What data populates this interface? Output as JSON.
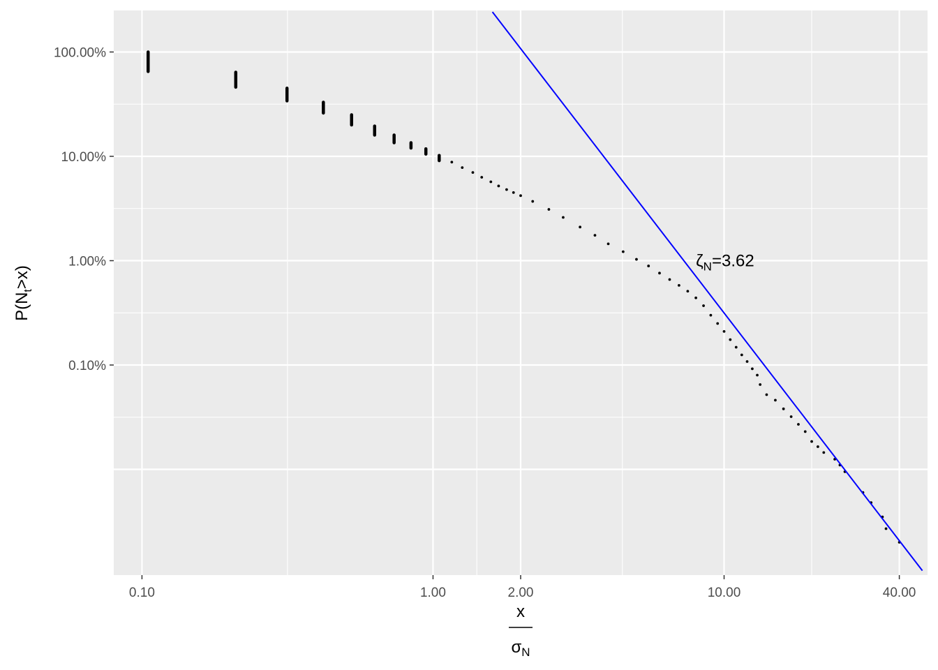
{
  "chart_data": {
    "type": "scatter",
    "x_scale": "log10",
    "y_scale": "log10",
    "xlim": [
      0.08,
      50
    ],
    "ylim": [
      9.7e-06,
      2.5
    ],
    "grid": true,
    "legend": "none",
    "colors": {
      "panel": "#ebebeb",
      "grid": "#ffffff",
      "points": "#000000",
      "fit_line": "#0000ff"
    },
    "xlabel": {
      "numerator": "x",
      "denominator_base": "σ",
      "denominator_sub": "N"
    },
    "ylabel": {
      "base": "P(N",
      "sub": "t",
      "rest": ">x)"
    },
    "x_major_ticks": [
      0.1,
      1,
      2,
      10,
      40
    ],
    "x_tick_labels": [
      "0.10",
      "1.00",
      "2.00",
      "10.00",
      "40.00"
    ],
    "x_minor_grid": [
      0.3162,
      1.4142,
      4.4721,
      20
    ],
    "y_major_ticks": [
      1,
      0.1,
      0.01,
      0.001
    ],
    "y_tick_labels": [
      "100.00%",
      "10.00%",
      "1.00%",
      "0.10%"
    ],
    "y_extra_grid": [
      0.0001
    ],
    "y_minor_grid": [
      0.3162,
      0.03162,
      0.003162,
      0.0003162
    ],
    "columns": [
      {
        "x": 0.105,
        "ymin": 0.65,
        "ymax": 1.0
      },
      {
        "x": 0.21,
        "ymin": 0.46,
        "ymax": 0.64
      },
      {
        "x": 0.315,
        "ymin": 0.34,
        "ymax": 0.45
      },
      {
        "x": 0.42,
        "ymin": 0.26,
        "ymax": 0.33
      },
      {
        "x": 0.525,
        "ymin": 0.2,
        "ymax": 0.25
      },
      {
        "x": 0.63,
        "ymin": 0.16,
        "ymax": 0.195
      },
      {
        "x": 0.735,
        "ymin": 0.135,
        "ymax": 0.16
      },
      {
        "x": 0.84,
        "ymin": 0.12,
        "ymax": 0.135
      },
      {
        "x": 0.945,
        "ymin": 0.105,
        "ymax": 0.118
      },
      {
        "x": 1.05,
        "ymin": 0.091,
        "ymax": 0.102
      }
    ],
    "points": [
      [
        1.16,
        0.088
      ],
      [
        1.26,
        0.078
      ],
      [
        1.37,
        0.07
      ],
      [
        1.47,
        0.063
      ],
      [
        1.58,
        0.057
      ],
      [
        1.68,
        0.052
      ],
      [
        1.79,
        0.048
      ],
      [
        1.89,
        0.045
      ],
      [
        2.0,
        0.042
      ],
      [
        2.2,
        0.037
      ],
      [
        2.5,
        0.031
      ],
      [
        2.8,
        0.026
      ],
      [
        3.2,
        0.021
      ],
      [
        3.6,
        0.0175
      ],
      [
        4.0,
        0.0145
      ],
      [
        4.5,
        0.0122
      ],
      [
        5.0,
        0.0103
      ],
      [
        5.5,
        0.0089
      ],
      [
        6.0,
        0.0076
      ],
      [
        6.5,
        0.0066
      ],
      [
        7.0,
        0.0058
      ],
      [
        7.5,
        0.0051
      ],
      [
        8.0,
        0.0044
      ],
      [
        8.5,
        0.0037
      ],
      [
        9.0,
        0.003
      ],
      [
        9.5,
        0.0025
      ],
      [
        10.0,
        0.0021
      ],
      [
        10.5,
        0.00175
      ],
      [
        11.0,
        0.00148
      ],
      [
        11.5,
        0.00125
      ],
      [
        12.0,
        0.00108
      ],
      [
        12.5,
        0.00092
      ],
      [
        13.0,
        0.0008
      ],
      [
        13.3,
        0.00065
      ],
      [
        14.0,
        0.00052
      ],
      [
        15.0,
        0.00046
      ],
      [
        16.0,
        0.00038
      ],
      [
        17.0,
        0.00032
      ],
      [
        18.0,
        0.00027
      ],
      [
        19.0,
        0.00023
      ],
      [
        20.0,
        0.000185
      ],
      [
        21.0,
        0.000165
      ],
      [
        22.0,
        0.000145
      ],
      [
        24.0,
        0.000125
      ],
      [
        25.0,
        0.00011
      ],
      [
        26.0,
        9.5e-05
      ],
      [
        30.0,
        6e-05
      ],
      [
        32.0,
        4.8e-05
      ],
      [
        35.0,
        3.5e-05
      ],
      [
        36.0,
        2.7e-05
      ],
      [
        40.0,
        2e-05
      ]
    ],
    "fit_line": {
      "label": "3.62",
      "zeta": 3.62,
      "from": [
        1.6,
        2.42
      ],
      "to": [
        48.0,
        1.07e-05
      ]
    },
    "annotation": {
      "text_base": "ζ",
      "text_sub": "N",
      "text_rest": "=3.62",
      "x": 8.0,
      "y": 0.01
    }
  }
}
